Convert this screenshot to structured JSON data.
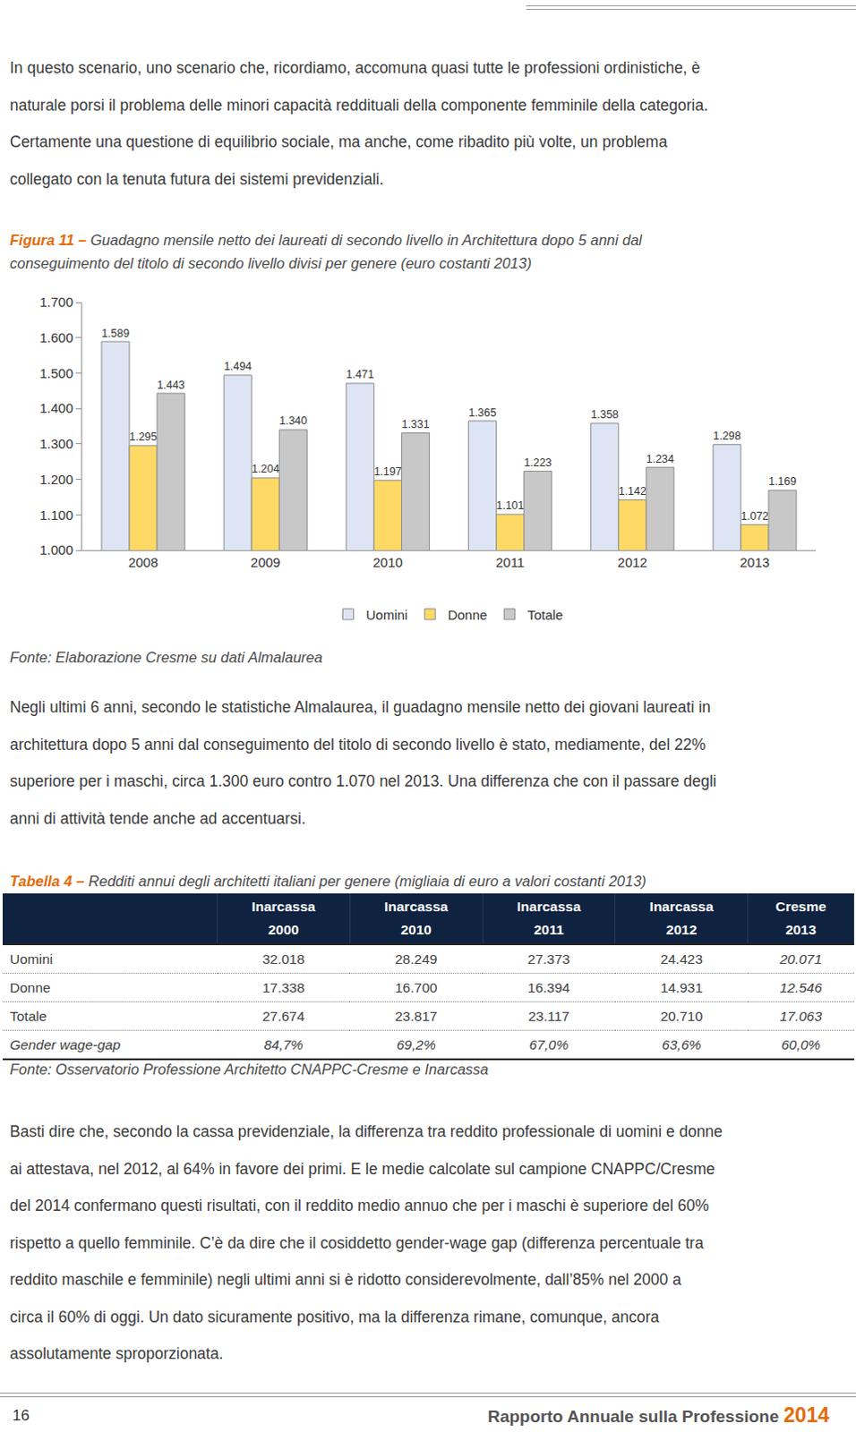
{
  "document": {
    "intro": [
      "In questo scenario, uno scenario che, ricordiamo, accomuna quasi tutte le professioni ordinistiche, è",
      "naturale porsi il problema delle minori capacità reddituali della componente femminile della categoria.",
      "Certamente una questione di equilibrio sociale, ma anche, come ribadito più volte, un problema",
      "collegato con la tenuta futura dei sistemi previdenziali."
    ],
    "figure": {
      "label": "Figura 11 –",
      "caption": [
        "Guadagno mensile netto dei laureati di secondo livello in Architettura dopo 5 anni dal",
        "conseguimento del titolo di secondo livello divisi per genere (euro costanti 2013)"
      ],
      "source": "Fonte: Elaborazione Cresme su dati Almalaurea"
    },
    "after_figure": [
      "Negli ultimi 6 anni, secondo le statistiche Almalaurea, il guadagno mensile netto dei giovani laureati in",
      "architettura dopo 5 anni dal conseguimento del titolo di secondo livello è stato, mediamente, del 22%",
      "superiore per i maschi,  circa 1.300 euro contro 1.070 nel 2013. Una differenza che con il passare degli",
      "anni di attività tende anche ad accentuarsi."
    ],
    "table": {
      "label": "Tabella 4 –",
      "caption": "Redditi annui degli architetti italiani per genere (migliaia di euro a valori costanti 2013)",
      "header": [
        [
          "Inarcassa",
          "2000"
        ],
        [
          "Inarcassa",
          "2010"
        ],
        [
          "Inarcassa",
          "2011"
        ],
        [
          "Inarcassa",
          "2012"
        ],
        [
          "Cresme",
          "2013"
        ]
      ],
      "rows": [
        [
          "Uomini",
          "32.018",
          "28.249",
          "27.373",
          "24.423",
          "20.071"
        ],
        [
          "Donne",
          "17.338",
          "16.700",
          "16.394",
          "14.931",
          "12.546"
        ],
        [
          "Totale",
          "27.674",
          "23.817",
          "23.117",
          "20.710",
          "17.063"
        ],
        [
          "Gender wage-gap",
          "84,7%",
          "69,2%",
          "67,0%",
          "63,6%",
          "60,0%"
        ]
      ],
      "source": "Fonte: Osservatorio Professione Architetto CNAPPC-Cresme e Inarcassa"
    },
    "closing": [
      "Basti dire che, secondo la cassa previdenziale, la differenza tra reddito professionale di uomini e donne",
      "ai attestava, nel 2012, al 64% in favore dei primi. E le medie calcolate sul campione CNAPPC/Cresme",
      "del 2014 confermano questi risultati, con il reddito medio annuo che per i maschi è superiore del 60%",
      "rispetto a quello femminile.  C’è da dire che il cosiddetto gender-wage gap (differenza percentuale tra",
      "reddito maschile e femminile) negli ultimi anni si è ridotto considerevolmente, dall’85% nel 2000 a",
      "circa il 60% di oggi. Un dato sicuramente positivo, ma la differenza rimane, comunque, ancora",
      "assolutamente sproporzionata."
    ],
    "footer": {
      "page": "16",
      "title": "Rapporto Annuale sulla Professione",
      "year": "2014"
    }
  },
  "chart_data": {
    "type": "bar",
    "categories": [
      "2008",
      "2009",
      "2010",
      "2011",
      "2012",
      "2013"
    ],
    "series": [
      {
        "name": "Uomini",
        "color": "#dde4f4",
        "values": [
          1589,
          1494,
          1471,
          1365,
          1358,
          1298
        ],
        "value_labels": [
          "1.589",
          "1.494",
          "1.471",
          "1.365",
          "1.358",
          "1.298"
        ]
      },
      {
        "name": "Donne",
        "color": "#ffd966",
        "values": [
          1295,
          1204,
          1197,
          1101,
          1142,
          1072
        ],
        "value_labels": [
          "1.295",
          "1.204",
          "1.197",
          "1.101",
          "1.142",
          "1.072"
        ]
      },
      {
        "name": "Totale",
        "color": "#c8c8c8",
        "values": [
          1443,
          1340,
          1331,
          1223,
          1234,
          1169
        ],
        "value_labels": [
          "1.443",
          "1.340",
          "1.331",
          "1.223",
          "1.234",
          "1.169"
        ]
      }
    ],
    "ylim": [
      1000,
      1700
    ],
    "yticks": [
      {
        "value": 1000,
        "label": "1.000"
      },
      {
        "value": 1100,
        "label": "1.100"
      },
      {
        "value": 1200,
        "label": "1.200"
      },
      {
        "value": 1300,
        "label": "1.300"
      },
      {
        "value": 1400,
        "label": "1.400"
      },
      {
        "value": 1500,
        "label": "1.500"
      },
      {
        "value": 1600,
        "label": "1.600"
      },
      {
        "value": 1700,
        "label": "1.700"
      }
    ],
    "grid": false,
    "legend": "bottom",
    "data_labels": true
  }
}
